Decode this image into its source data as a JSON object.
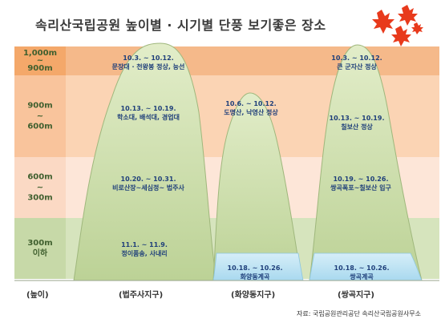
{
  "title": "속리산국립공원 높이별 · 시기별 단풍 보기좋은 장소",
  "colors": {
    "band_top": "#f5b98a",
    "band_2": "#fbd4b4",
    "band_3": "#fde6d8",
    "band_bottom": "#d6e4bd",
    "axis_band_top": "#f4a86a",
    "mountain_fill": "#cfe0b0",
    "mountain_stroke": "#a8bf86",
    "water": "#bfe4f3",
    "label_text": "#1f3f7a",
    "axis_text": "#3f5f2e"
  },
  "axis": {
    "bands": [
      {
        "top": "1,000m",
        "mid": "~",
        "bottom": "900m"
      },
      {
        "top": "900m",
        "mid": "~",
        "bottom": "600m"
      },
      {
        "top": "600m",
        "mid": "~",
        "bottom": "300m"
      },
      {
        "top": "300m",
        "mid": "",
        "bottom": "이하"
      }
    ],
    "bottom_label": "(높이)"
  },
  "mountains": [
    {
      "name": "(법주사지구)",
      "labels": [
        {
          "date": "10.3. ~ 10.12.",
          "place": "문장대 · 천왕봉 정상, 능선"
        },
        {
          "date": "10.13. ~ 10.19.",
          "place": "학소대, 배석대, 경업대"
        },
        {
          "date": "10.20. ~ 10.31.",
          "place": "비로산장~세심정~ 법주사"
        },
        {
          "date": "11.1. ~ 11.9.",
          "place": "정이품송, 사내리"
        }
      ]
    },
    {
      "name": "(화양동지구)",
      "labels": [
        {
          "date": "10.6. ~ 10.12.",
          "place": "도명산, 낙영산 정상"
        },
        {
          "date": "10.18. ~ 10.26.",
          "place": "화양동계곡"
        }
      ]
    },
    {
      "name": "(쌍곡지구)",
      "labels": [
        {
          "date": "10.3. ~ 10.12.",
          "place": "큰 군자산 정상"
        },
        {
          "date": "10.13. ~ 10.19.",
          "place": "칠보산 정상"
        },
        {
          "date": "10.19. ~ 10.26.",
          "place": "쌍곡폭포~칠보산 입구"
        },
        {
          "date": "10.18. ~ 10.26.",
          "place": "쌍곡계곡"
        }
      ]
    }
  ],
  "source": "자료:  국립공원관리공단   속리산국립공원사무소"
}
